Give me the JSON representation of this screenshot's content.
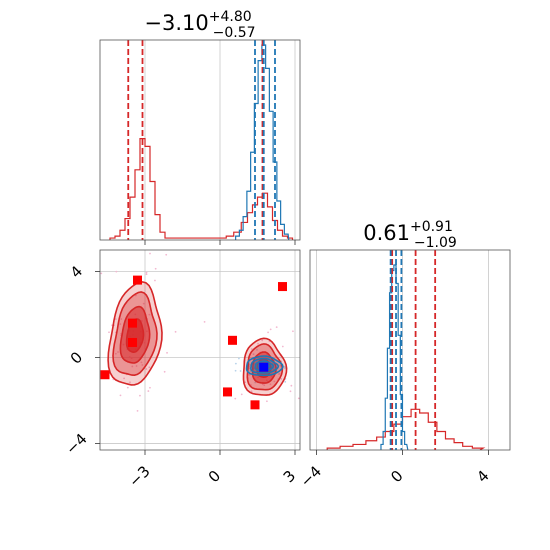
{
  "colors": {
    "red": "#d62728",
    "blue": "#1f77b4",
    "marker_red": "#ff0000",
    "marker_blue": "#0000ff"
  },
  "chart_data": {
    "type": "corner",
    "parameters": [
      {
        "title_main": "−3.10",
        "title_plus": "+4.80",
        "title_minus": "−0.57",
        "range": [
          -4.8,
          3.2
        ],
        "ticks": [
          -3,
          0,
          3
        ],
        "tick_labels": [
          "−3",
          "0",
          "3"
        ]
      },
      {
        "title_main": "0.61",
        "title_plus": "+0.91",
        "title_minus": "−1.09",
        "range": [
          -4.3,
          5.0
        ],
        "ticks": [
          -4,
          0,
          4
        ],
        "tick_labels": [
          "−4",
          "0",
          "4"
        ]
      }
    ],
    "series": [
      {
        "color": "red",
        "quantiles_p0": [
          -3.67,
          -3.1,
          1.7
        ],
        "quantiles_p1": [
          -0.48,
          0.61,
          1.52
        ],
        "hist_p0": [
          {
            "x": -4.3,
            "v": 0.01
          },
          {
            "x": -4.1,
            "v": 0.02
          },
          {
            "x": -3.9,
            "v": 0.05
          },
          {
            "x": -3.7,
            "v": 0.11
          },
          {
            "x": -3.5,
            "v": 0.22
          },
          {
            "x": -3.3,
            "v": 0.36
          },
          {
            "x": -3.1,
            "v": 0.52
          },
          {
            "x": -2.9,
            "v": 0.48
          },
          {
            "x": -2.7,
            "v": 0.3
          },
          {
            "x": -2.5,
            "v": 0.13
          },
          {
            "x": -2.3,
            "v": 0.04
          },
          {
            "x": -2.1,
            "v": 0.01
          },
          {
            "x": 0.1,
            "v": 0.01
          },
          {
            "x": 0.4,
            "v": 0.02
          },
          {
            "x": 0.7,
            "v": 0.04
          },
          {
            "x": 1.0,
            "v": 0.09
          },
          {
            "x": 1.2,
            "v": 0.14
          },
          {
            "x": 1.4,
            "v": 0.18
          },
          {
            "x": 1.6,
            "v": 0.22
          },
          {
            "x": 1.8,
            "v": 0.24
          },
          {
            "x": 2.0,
            "v": 0.17
          },
          {
            "x": 2.2,
            "v": 0.1
          },
          {
            "x": 2.4,
            "v": 0.05
          },
          {
            "x": 2.6,
            "v": 0.02
          },
          {
            "x": 2.8,
            "v": 0.01
          }
        ],
        "hist_p1": [
          {
            "x": -3.2,
            "v": 0.01
          },
          {
            "x": -2.6,
            "v": 0.02
          },
          {
            "x": -2.0,
            "v": 0.03
          },
          {
            "x": -1.4,
            "v": 0.05
          },
          {
            "x": -1.0,
            "v": 0.07
          },
          {
            "x": -0.6,
            "v": 0.1
          },
          {
            "x": -0.2,
            "v": 0.14
          },
          {
            "x": 0.2,
            "v": 0.18
          },
          {
            "x": 0.6,
            "v": 0.22
          },
          {
            "x": 1.0,
            "v": 0.2
          },
          {
            "x": 1.4,
            "v": 0.15
          },
          {
            "x": 1.8,
            "v": 0.1
          },
          {
            "x": 2.2,
            "v": 0.06
          },
          {
            "x": 2.6,
            "v": 0.04
          },
          {
            "x": 3.0,
            "v": 0.02
          },
          {
            "x": 3.5,
            "v": 0.01
          }
        ],
        "points": [
          {
            "x": -3.3,
            "y": 3.6
          },
          {
            "x": -3.5,
            "y": 1.6
          },
          {
            "x": -3.5,
            "y": 0.7
          },
          {
            "x": -4.6,
            "y": -0.8
          },
          {
            "x": 0.5,
            "y": 0.8
          },
          {
            "x": 0.3,
            "y": -1.6
          },
          {
            "x": 1.4,
            "y": -2.2
          },
          {
            "x": 2.5,
            "y": 3.3
          }
        ],
        "modes": [
          {
            "cx": -3.4,
            "cy": 1.0,
            "sx": 0.65,
            "sy": 1.55,
            "rot": 8
          },
          {
            "cx": 1.75,
            "cy": -0.5,
            "sx": 0.55,
            "sy": 0.85,
            "rot": 0
          }
        ]
      },
      {
        "color": "blue",
        "quantiles_p0": [
          1.4,
          1.75,
          2.2
        ],
        "quantiles_p1": [
          -0.55,
          -0.3,
          -0.05
        ],
        "hist_p0": [
          {
            "x": 0.7,
            "v": 0.02
          },
          {
            "x": 0.85,
            "v": 0.05
          },
          {
            "x": 1.0,
            "v": 0.12
          },
          {
            "x": 1.15,
            "v": 0.25
          },
          {
            "x": 1.3,
            "v": 0.45
          },
          {
            "x": 1.45,
            "v": 0.7
          },
          {
            "x": 1.6,
            "v": 0.92
          },
          {
            "x": 1.75,
            "v": 1.0
          },
          {
            "x": 1.9,
            "v": 0.88
          },
          {
            "x": 2.05,
            "v": 0.66
          },
          {
            "x": 2.2,
            "v": 0.4
          },
          {
            "x": 2.35,
            "v": 0.2
          },
          {
            "x": 2.5,
            "v": 0.08
          },
          {
            "x": 2.65,
            "v": 0.03
          }
        ],
        "hist_p1": [
          {
            "x": -0.95,
            "v": 0.03
          },
          {
            "x": -0.85,
            "v": 0.1
          },
          {
            "x": -0.75,
            "v": 0.28
          },
          {
            "x": -0.65,
            "v": 0.55
          },
          {
            "x": -0.55,
            "v": 0.85
          },
          {
            "x": -0.45,
            "v": 0.97
          },
          {
            "x": -0.35,
            "v": 1.0
          },
          {
            "x": -0.25,
            "v": 0.9
          },
          {
            "x": -0.15,
            "v": 0.62
          },
          {
            "x": -0.05,
            "v": 0.3
          },
          {
            "x": 0.05,
            "v": 0.1
          },
          {
            "x": 0.15,
            "v": 0.03
          }
        ],
        "points": [
          {
            "x": 1.75,
            "y": -0.45
          }
        ],
        "modes": [
          {
            "cx": 1.75,
            "cy": -0.4,
            "sx": 0.45,
            "sy": 0.28,
            "rot": 0
          }
        ]
      }
    ]
  }
}
